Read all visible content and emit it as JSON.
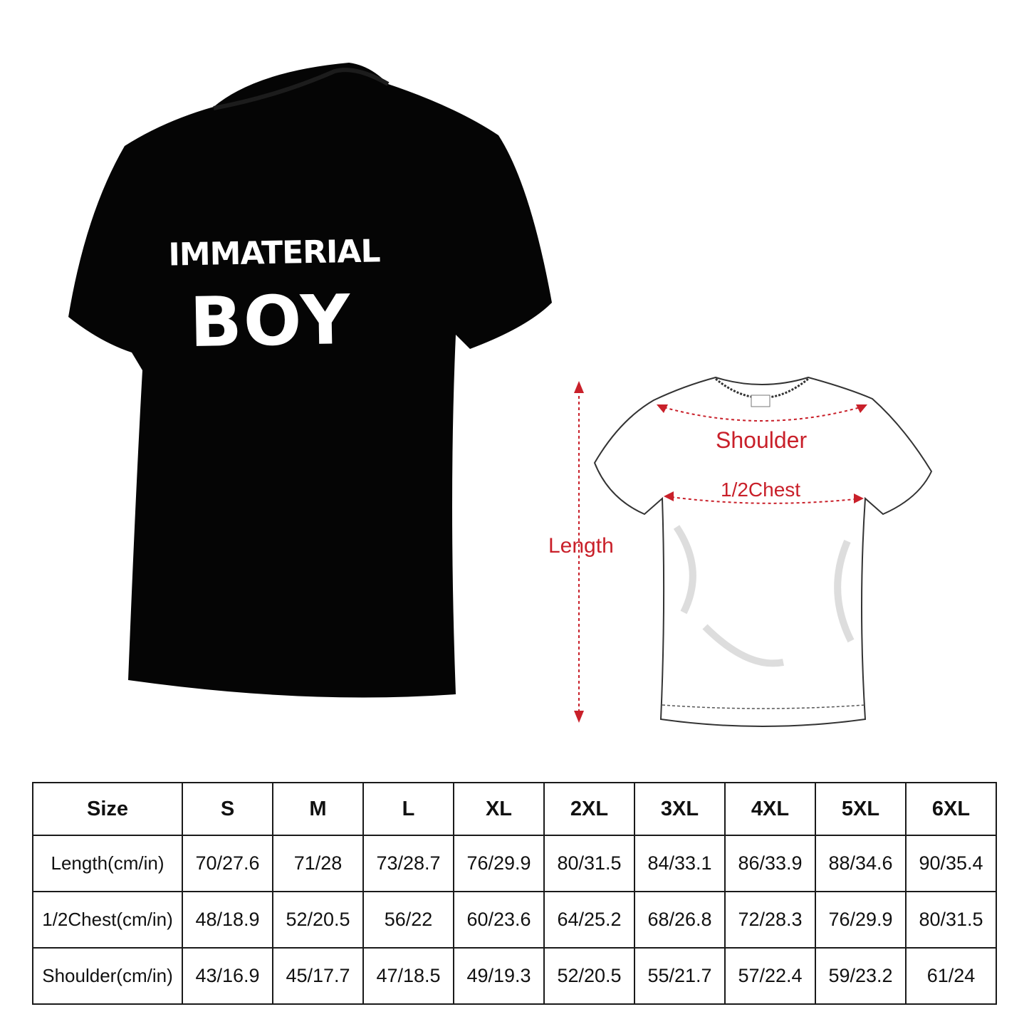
{
  "product": {
    "print_text": [
      "IMMATERIAL",
      "BOY"
    ],
    "shirt_color": "#050505",
    "print_color": "#ffffff"
  },
  "diagram": {
    "labels": {
      "shoulder": "Shoulder",
      "chest": "1/2Chest",
      "length": "Length"
    },
    "label_color": "#c9202a"
  },
  "size_chart": {
    "header": [
      "Size",
      "S",
      "M",
      "L",
      "XL",
      "2XL",
      "3XL",
      "4XL",
      "5XL",
      "6XL"
    ],
    "rows": [
      {
        "label": "Length(cm/in)",
        "values": [
          "70/27.6",
          "71/28",
          "73/28.7",
          "76/29.9",
          "80/31.5",
          "84/33.1",
          "86/33.9",
          "88/34.6",
          "90/35.4"
        ]
      },
      {
        "label": "1/2Chest(cm/in)",
        "values": [
          "48/18.9",
          "52/20.5",
          "56/22",
          "60/23.6",
          "64/25.2",
          "68/26.8",
          "72/28.3",
          "76/29.9",
          "80/31.5"
        ]
      },
      {
        "label": "Shoulder(cm/in)",
        "values": [
          "43/16.9",
          "45/17.7",
          "47/18.5",
          "49/19.3",
          "52/20.5",
          "55/21.7",
          "57/22.4",
          "59/23.2",
          "61/24"
        ]
      }
    ]
  }
}
